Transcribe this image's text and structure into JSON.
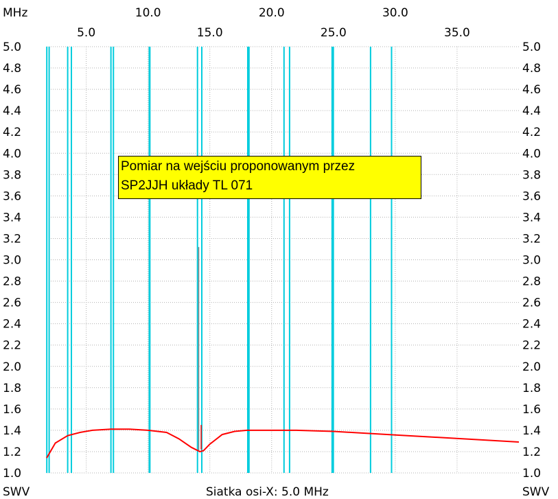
{
  "chart_data": {
    "type": "line",
    "x_unit_label": "MHz",
    "y_label_left": "SWV",
    "y_label_right": "SWV",
    "footer_label": "Siatka osi-X: 5.0 MHz",
    "xlim": [
      1.8,
      40.0
    ],
    "ylim": [
      1.0,
      5.0
    ],
    "x_ticks_upper": [
      "10.0",
      "20.0",
      "30.0"
    ],
    "x_ticks_upper_values": [
      10,
      20,
      30
    ],
    "x_ticks_lower": [
      "5.0",
      "15.0",
      "25.0",
      "35.0"
    ],
    "x_ticks_lower_values": [
      5,
      15,
      25,
      35
    ],
    "y_ticks": [
      "1.0",
      "1.2",
      "1.4",
      "1.6",
      "1.8",
      "2.0",
      "2.2",
      "2.4",
      "2.6",
      "2.8",
      "3.0",
      "3.2",
      "3.4",
      "3.6",
      "3.8",
      "4.0",
      "4.2",
      "4.4",
      "4.6",
      "4.8",
      "5.0"
    ],
    "grid": true,
    "band_markers_mhz": [
      [
        1.81,
        2.0
      ],
      [
        3.5,
        3.8
      ],
      [
        7.0,
        7.2
      ],
      [
        10.1,
        10.15
      ],
      [
        14.0,
        14.35
      ],
      [
        18.068,
        18.168
      ],
      [
        21.0,
        21.45
      ],
      [
        24.89,
        24.99
      ],
      [
        28.0,
        29.7
      ]
    ],
    "annotation": {
      "line1": "Pomiar na wejściu proponowanym przez",
      "line2": "SP2JJH układy TL 071"
    },
    "series": [
      {
        "color": "#ff0000",
        "x": [
          1.8,
          2.5,
          3.5,
          4.5,
          5.5,
          7.0,
          8.5,
          10.0,
          11.5,
          12.5,
          13.5,
          14.2,
          14.5,
          15.0,
          16.0,
          17.0,
          18.0,
          20.0,
          22.0,
          25.0,
          28.0,
          31.0,
          34.0,
          37.0,
          40.0
        ],
        "y": [
          1.14,
          1.28,
          1.35,
          1.38,
          1.4,
          1.41,
          1.41,
          1.4,
          1.38,
          1.32,
          1.24,
          1.2,
          1.21,
          1.27,
          1.36,
          1.39,
          1.4,
          1.4,
          1.4,
          1.39,
          1.37,
          1.35,
          1.33,
          1.31,
          1.29
        ]
      },
      {
        "color": "#ff0000",
        "x": [
          14.3,
          14.3,
          14.3
        ],
        "y": [
          1.22,
          1.45,
          1.22
        ]
      },
      {
        "color": "#808080",
        "x": [
          14.1,
          14.1
        ],
        "y": [
          1.21,
          3.12
        ]
      }
    ],
    "colors": {
      "band_marker": "#00ccdd",
      "grid": "#b0b0b0",
      "annotation_bg": "#ffff00"
    }
  }
}
